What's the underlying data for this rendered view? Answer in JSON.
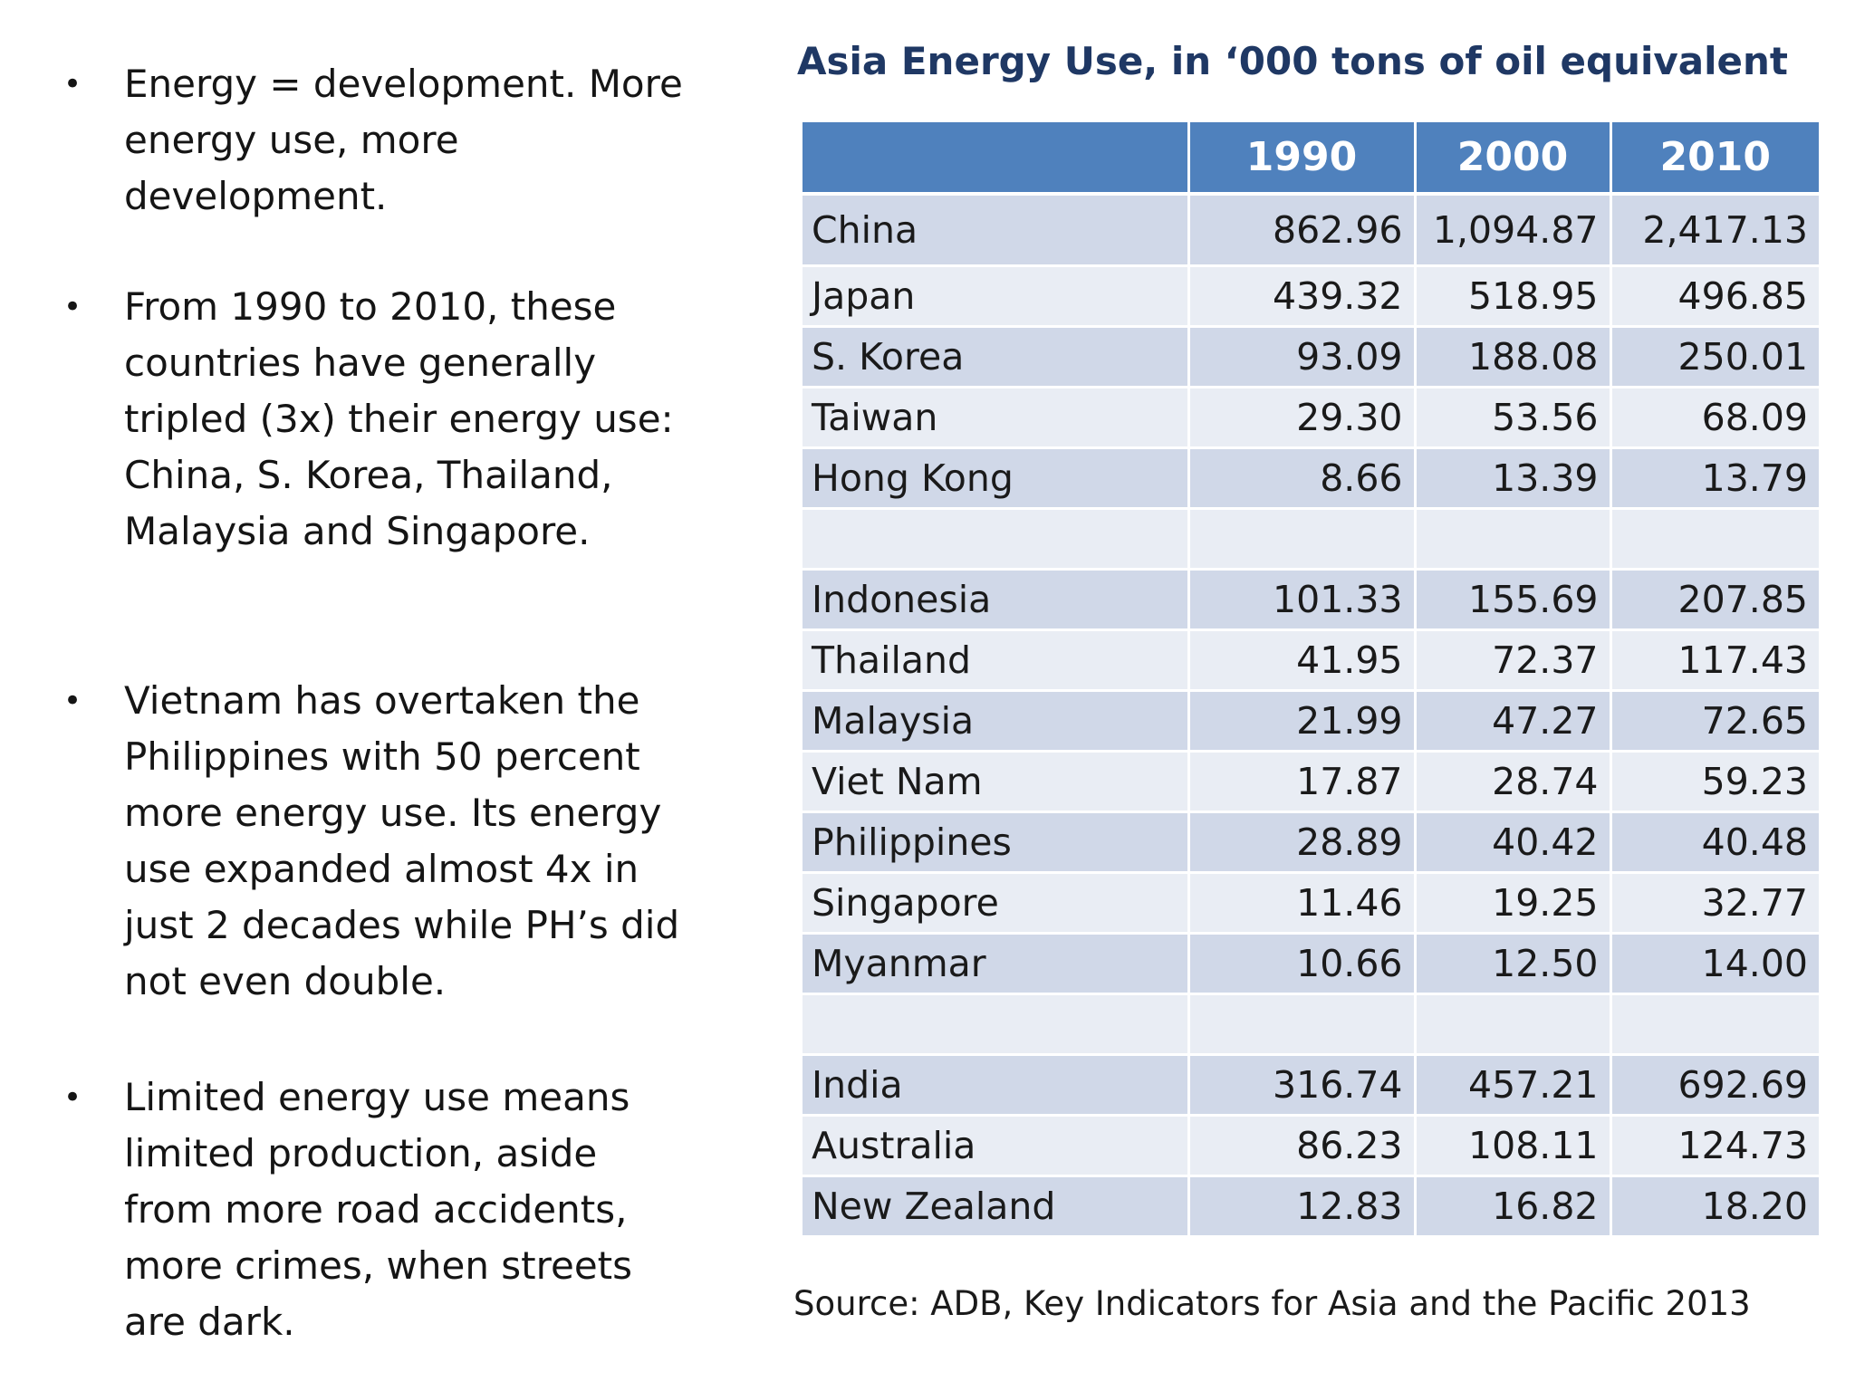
{
  "bullets": [
    {
      "text": "Energy = development. More energy use, more development."
    },
    {
      "text": "From 1990 to 2010, these countries have generally tripled (3x) their energy use: China, S. Korea, Thailand, Malaysia and Singapore."
    },
    {
      "text": "Vietnam has overtaken the Philippines with 50 percent more energy use. Its energy use expanded almost 4x in just 2 decades while PH’s did not even double."
    },
    {
      "text": "Limited energy use means limited production, aside from more road accidents, more crimes, when streets are dark."
    }
  ],
  "bullet_glyph": "•",
  "table": {
    "title": "Asia Energy Use, in ‘000 tons of oil equivalent",
    "headers": [
      "",
      "1990",
      "2000",
      "2010"
    ],
    "rows": [
      [
        "China",
        "862.96",
        "1,094.87",
        "2,417.13"
      ],
      [
        "Japan",
        "439.32",
        "518.95",
        "496.85"
      ],
      [
        "S. Korea",
        "93.09",
        "188.08",
        "250.01"
      ],
      [
        "Taiwan",
        "29.30",
        "53.56",
        "68.09"
      ],
      [
        "Hong Kong",
        "8.66",
        "13.39",
        "13.79"
      ],
      [
        "",
        "",
        "",
        ""
      ],
      [
        "Indonesia",
        "101.33",
        "155.69",
        "207.85"
      ],
      [
        "Thailand",
        "41.95",
        "72.37",
        "117.43"
      ],
      [
        "Malaysia",
        "21.99",
        "47.27",
        "72.65"
      ],
      [
        "Viet Nam",
        "17.87",
        "28.74",
        "59.23"
      ],
      [
        "Philippines",
        "28.89",
        "40.42",
        "40.48"
      ],
      [
        "Singapore",
        "11.46",
        "19.25",
        "32.77"
      ],
      [
        "Myanmar",
        "10.66",
        "12.50",
        "14.00"
      ],
      [
        "",
        "",
        "",
        ""
      ],
      [
        "India",
        "316.74",
        "457.21",
        "692.69"
      ],
      [
        "Australia",
        "86.23",
        "108.11",
        "124.73"
      ],
      [
        "New Zealand",
        "12.83",
        "16.82",
        "18.20"
      ]
    ],
    "source": "Source: ADB, Key Indicators for Asia and the Pacific 2013"
  },
  "colors": {
    "header_bg": "#4f81bd",
    "row_dark": "#d0d8e8",
    "row_light": "#e9edf4",
    "title": "#1f3864",
    "footer_red": "#c00000"
  }
}
